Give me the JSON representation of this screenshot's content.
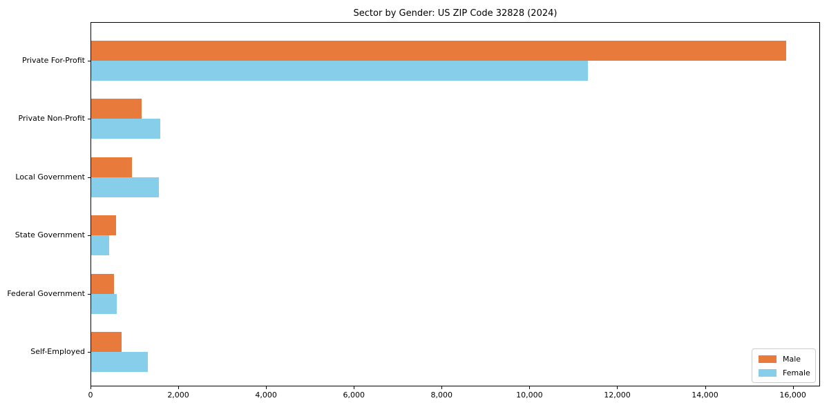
{
  "chart_data": {
    "type": "bar",
    "orientation": "horizontal",
    "title": "Sector by Gender: US ZIP Code 32828 (2024)",
    "categories": [
      "Private For-Profit",
      "Private Non-Profit",
      "Local Government",
      "State Government",
      "Federal Government",
      "Self-Employed"
    ],
    "series": [
      {
        "name": "Male",
        "color": "#E87B3C",
        "values": [
          15830,
          1150,
          930,
          565,
          525,
          695
        ]
      },
      {
        "name": "Female",
        "color": "#87CEEB",
        "values": [
          11320,
          1575,
          1535,
          405,
          580,
          1295
        ]
      }
    ],
    "xlabel": "",
    "ylabel": "",
    "xlim": [
      0,
      16620
    ],
    "x_tick_values": [
      0,
      2000,
      4000,
      6000,
      8000,
      10000,
      12000,
      14000,
      16000
    ],
    "x_tick_labels": [
      "0",
      "2,000",
      "4,000",
      "6,000",
      "8,000",
      "10,000",
      "12,000",
      "14,000",
      "16,000"
    ],
    "grid": false,
    "legend": {
      "position": "lower right",
      "entries": [
        "Male",
        "Female"
      ]
    }
  }
}
